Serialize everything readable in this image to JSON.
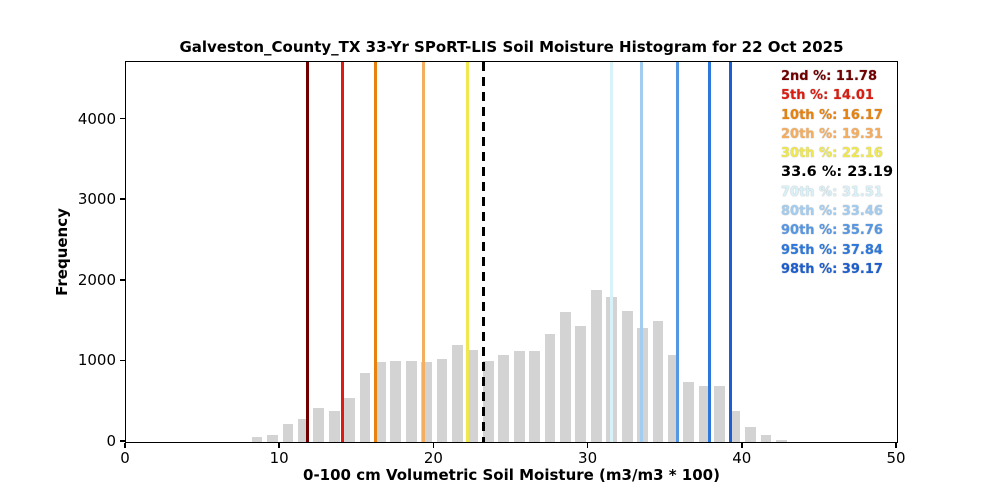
{
  "chart_data": {
    "type": "bar",
    "title": "Galveston_County_TX 33-Yr SPoRT-LIS Soil Moisture Histogram for 22 Oct 2025",
    "xlabel": "0-100 cm Volumetric Soil Moisture (m3/m3 * 100)",
    "ylabel": "Frequency",
    "xlim": [
      0,
      50
    ],
    "ylim": [
      0,
      4714
    ],
    "x_ticks": [
      0,
      10,
      20,
      30,
      40,
      50
    ],
    "y_ticks": [
      0,
      1000,
      2000,
      3000,
      4000
    ],
    "grid": false,
    "legend_position": "upper right",
    "bar_color": "#d3d3d3",
    "bar_rwidth": 0.7,
    "bin_width": 1,
    "bin_left": [
      8,
      9,
      10,
      11,
      12,
      13,
      14,
      15,
      16,
      17,
      18,
      19,
      20,
      21,
      22,
      23,
      24,
      25,
      26,
      27,
      28,
      29,
      30,
      31,
      32,
      33,
      34,
      35,
      36,
      37,
      38,
      39,
      40,
      41,
      42
    ],
    "counts": [
      60,
      85,
      225,
      285,
      425,
      390,
      550,
      860,
      990,
      1000,
      1010,
      995,
      1030,
      1200,
      1140,
      1005,
      1075,
      1130,
      1130,
      1335,
      1610,
      1445,
      1880,
      1805,
      1620,
      1420,
      1505,
      1075,
      750,
      690,
      690,
      380,
      190,
      90,
      20
    ],
    "percentile_lines": [
      {
        "name": "2nd",
        "label": "2nd %: 11.78",
        "value": 11.78,
        "color": "#700000",
        "style": "solid"
      },
      {
        "name": "5th",
        "label": "5th %: 14.01",
        "value": 14.01,
        "color": "#dd1b10",
        "style": "solid"
      },
      {
        "name": "10th",
        "label": "10th %: 16.17",
        "value": 16.17,
        "color": "#e8820e",
        "style": "solid"
      },
      {
        "name": "20th",
        "label": "20th %: 19.31",
        "value": 19.31,
        "color": "#f5ad60",
        "style": "solid"
      },
      {
        "name": "30th",
        "label": "30th %: 22.16",
        "value": 22.16,
        "color": "#efe84f",
        "style": "solid"
      },
      {
        "name": "33.6",
        "label": "33.6 %: 23.19",
        "value": 23.19,
        "color": "#000000",
        "style": "dashed",
        "emphasis": true
      },
      {
        "name": "70th",
        "label": "70th %: 31.51",
        "value": 31.51,
        "color": "#d9f2f9",
        "style": "solid"
      },
      {
        "name": "80th",
        "label": "80th %: 33.46",
        "value": 33.46,
        "color": "#a3cdf0",
        "style": "solid"
      },
      {
        "name": "90th",
        "label": "90th %: 35.76",
        "value": 35.76,
        "color": "#5697e4",
        "style": "solid"
      },
      {
        "name": "95th",
        "label": "95th %: 37.84",
        "value": 37.84,
        "color": "#2d78dc",
        "style": "solid"
      },
      {
        "name": "98th",
        "label": "98th %: 39.17",
        "value": 39.17,
        "color": "#1c5ecf",
        "style": "solid"
      }
    ]
  }
}
